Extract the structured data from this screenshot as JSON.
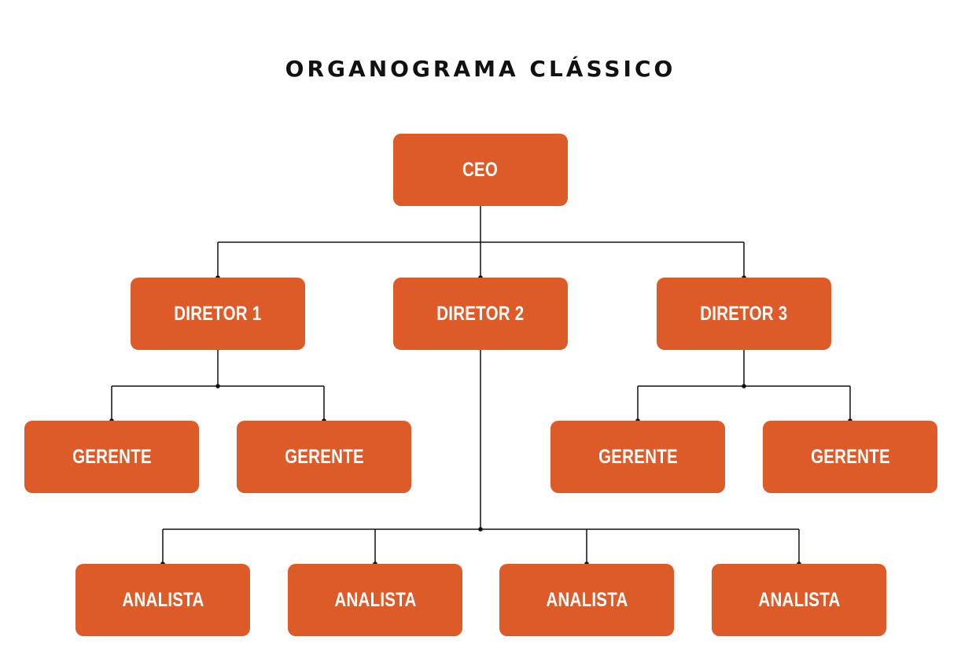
{
  "title": "ORGANOGRAMA CLÁSSICO",
  "colors": {
    "box_fill": "#DC5B29",
    "box_text": "#FFFFFF",
    "connector": "#111111",
    "title_text": "#111111"
  },
  "nodes": {
    "ceo": "CEO",
    "director_1": "DIRETOR 1",
    "director_2": "DIRETOR 2",
    "director_3": "DIRETOR 3",
    "manager_1": "GERENTE",
    "manager_2": "GERENTE",
    "manager_3": "GERENTE",
    "manager_4": "GERENTE",
    "analyst_1": "ANALISTA",
    "analyst_2": "ANALISTA",
    "analyst_3": "ANALISTA",
    "analyst_4": "ANALISTA"
  },
  "hierarchy": [
    {
      "parent": "ceo",
      "children": [
        "director_1",
        "director_2",
        "director_3"
      ]
    },
    {
      "parent": "director_1",
      "children": [
        "manager_1",
        "manager_2"
      ]
    },
    {
      "parent": "director_3",
      "children": [
        "manager_3",
        "manager_4"
      ]
    },
    {
      "parent": "director_2",
      "children": [
        "analyst_1",
        "analyst_2",
        "analyst_3",
        "analyst_4"
      ]
    }
  ]
}
